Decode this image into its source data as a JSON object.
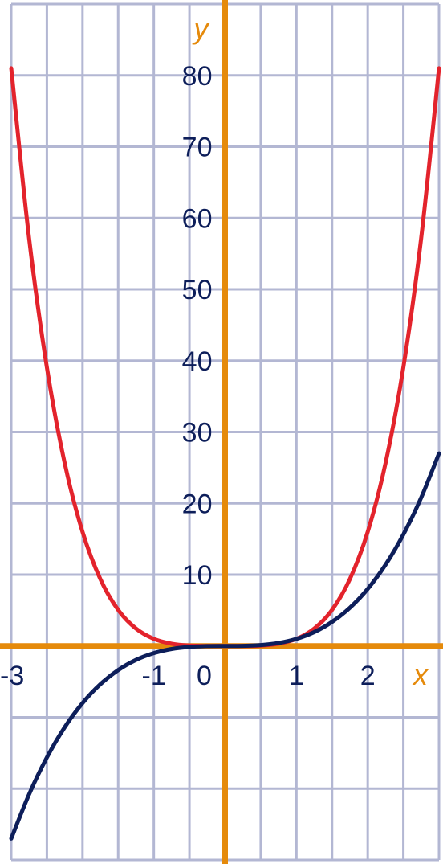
{
  "chart_data": {
    "type": "line",
    "title": "",
    "xlabel": "x",
    "ylabel": "y",
    "xlim": [
      -3,
      3
    ],
    "ylim": [
      -30,
      90
    ],
    "grid": true,
    "x_ticks": [
      {
        "value": -3,
        "label": "-3"
      },
      {
        "value": -1,
        "label": "-1"
      },
      {
        "value": 0,
        "label": "0"
      },
      {
        "value": 1,
        "label": "1"
      },
      {
        "value": 2,
        "label": "2"
      }
    ],
    "y_ticks": [
      {
        "value": 10,
        "label": "10"
      },
      {
        "value": 20,
        "label": "20"
      },
      {
        "value": 30,
        "label": "30"
      },
      {
        "value": 40,
        "label": "40"
      },
      {
        "value": 50,
        "label": "50"
      },
      {
        "value": 60,
        "label": "60"
      },
      {
        "value": 70,
        "label": "70"
      },
      {
        "value": 80,
        "label": "80"
      }
    ],
    "series": [
      {
        "color": "#e3232c",
        "x": [
          -3,
          -2.75,
          -2.5,
          -2.25,
          -2,
          -1.75,
          -1.5,
          -1.25,
          -1,
          -0.75,
          -0.5,
          -0.25,
          0,
          0.25,
          0.5,
          0.75,
          1,
          1.25,
          1.5,
          1.75,
          2,
          2.25,
          2.5,
          2.75,
          3
        ],
        "values": [
          81,
          57.19,
          39.06,
          25.63,
          16,
          9.38,
          5.06,
          2.44,
          1,
          0.32,
          0.06,
          0,
          0,
          0,
          0.06,
          0.32,
          1,
          2.44,
          5.06,
          9.38,
          16,
          25.63,
          39.06,
          57.19,
          81
        ]
      },
      {
        "color": "#0d1e5a",
        "x": [
          -3,
          -2.75,
          -2.5,
          -2.25,
          -2,
          -1.75,
          -1.5,
          -1.25,
          -1,
          -0.75,
          -0.5,
          -0.25,
          0,
          0.25,
          0.5,
          0.75,
          1,
          1.25,
          1.5,
          1.75,
          2,
          2.25,
          2.5,
          2.75,
          3
        ],
        "values": [
          -27,
          -20.8,
          -15.63,
          -11.39,
          -8,
          -5.36,
          -3.38,
          -1.95,
          -1,
          -0.42,
          -0.13,
          -0.02,
          0,
          0.02,
          0.13,
          0.42,
          1,
          1.95,
          3.38,
          5.36,
          8,
          11.39,
          15.63,
          20.8,
          27
        ]
      }
    ],
    "colors": {
      "axis": "#e58a0b",
      "grid": "#b3b7d3",
      "text": "#0d1e5a"
    }
  }
}
